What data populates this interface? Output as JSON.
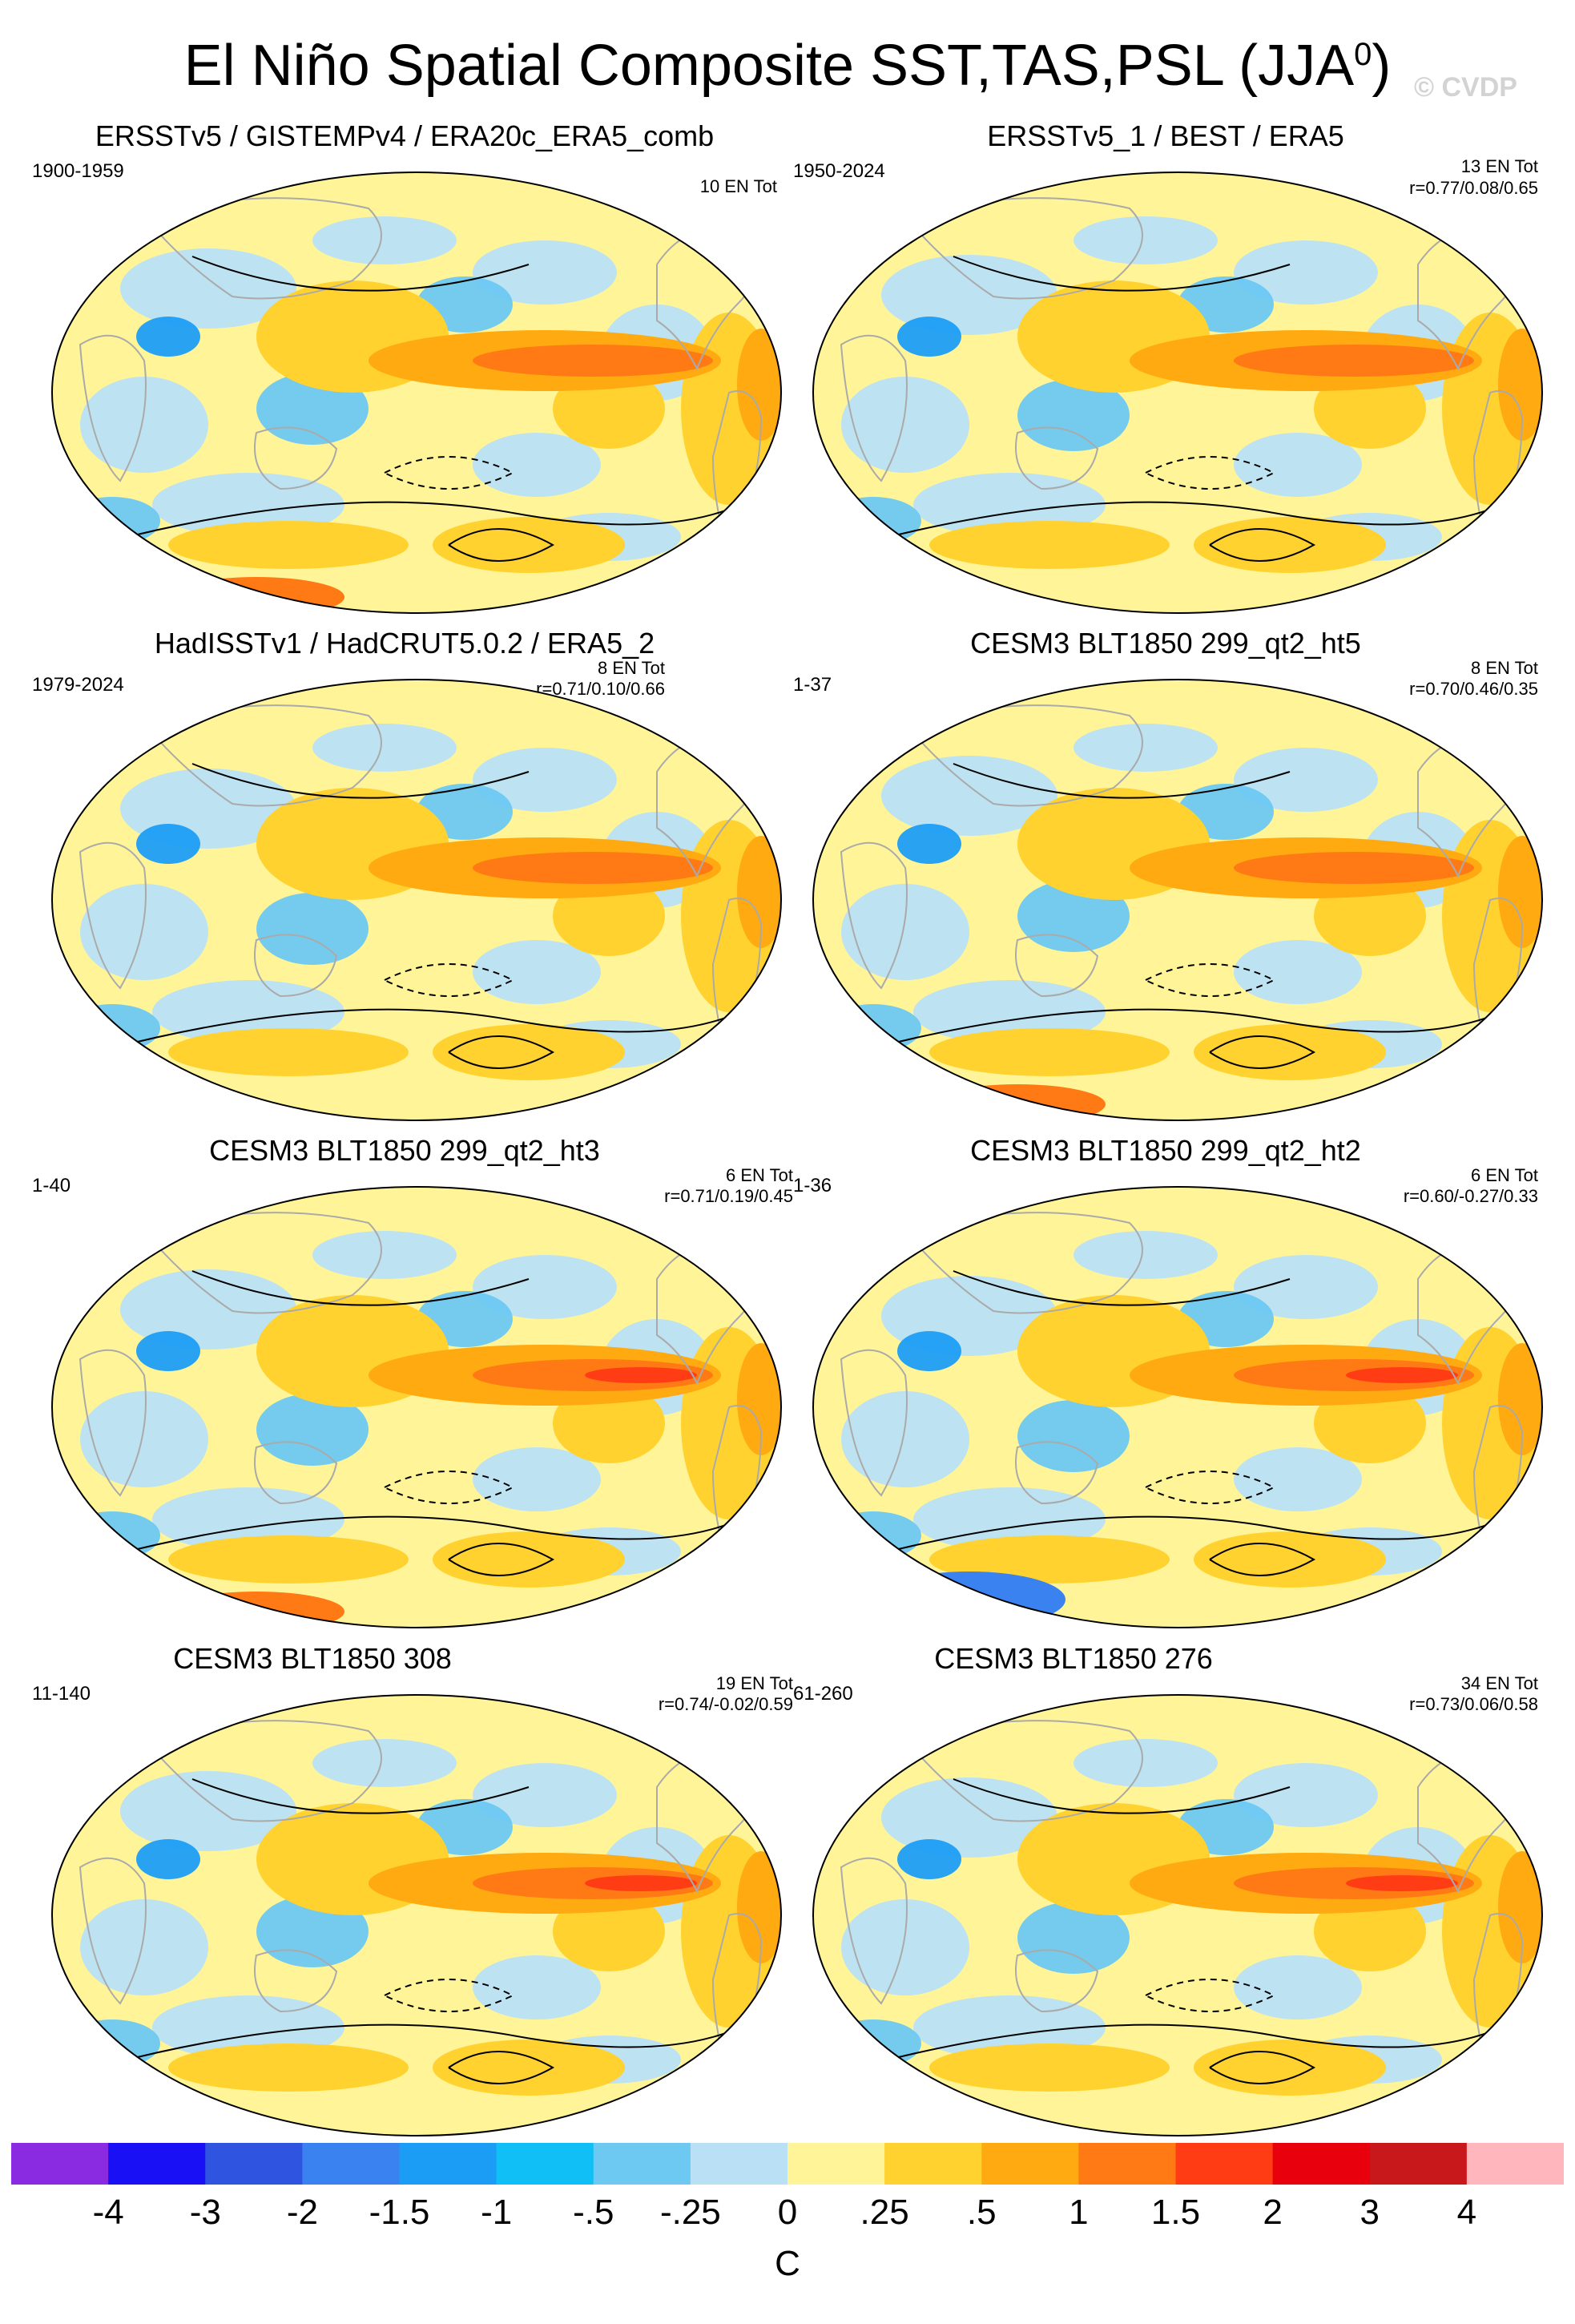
{
  "title": {
    "main": "El Niño Spatial Composite SST,TAS,PSL (JJA",
    "sup": "0",
    "close": ")"
  },
  "watermark": "© CVDP",
  "colors": {
    "land_outline": "#aaaaaa",
    "contour": "#000000"
  },
  "panels": [
    {
      "title": "ERSSTv5 / GISTEMPv4 / ERA20c_ERA5_comb",
      "period": "1900-1959",
      "en_tot": "10 EN Tot",
      "r": ""
    },
    {
      "title": "ERSSTv5_1 / BEST / ERA5",
      "period": "1950-2024",
      "en_tot": "13 EN Tot",
      "r": "r=0.77/0.08/0.65"
    },
    {
      "title": "HadISSTv1 / HadCRUT5.0.2 / ERA5_2",
      "period": "1979-2024",
      "en_tot": "8 EN Tot",
      "r": "r=0.71/0.10/0.66"
    },
    {
      "title": "CESM3 BLT1850 299_qt2_ht5",
      "period": "1-37",
      "en_tot": "8 EN Tot",
      "r": "r=0.70/0.46/0.35"
    },
    {
      "title": "CESM3 BLT1850 299_qt2_ht3",
      "period": "1-40",
      "en_tot": "6 EN Tot",
      "r": "r=0.71/0.19/0.45"
    },
    {
      "title": "CESM3 BLT1850 299_qt2_ht2",
      "period": "1-36",
      "en_tot": "6 EN Tot",
      "r": "r=0.60/-0.27/0.33"
    },
    {
      "title": "CESM3 BLT1850 308",
      "period": "11-140",
      "en_tot": "19 EN Tot",
      "r": "r=0.74/-0.02/0.59"
    },
    {
      "title": "CESM3 BLT1850 276",
      "period": "61-260",
      "en_tot": "34 EN Tot",
      "r": "r=0.73/0.06/0.58"
    }
  ],
  "chart_data": {
    "type": "heatmap",
    "title": "El Niño Spatial Composite SST,TAS,PSL (JJA0)",
    "projection": "Robinson global maps, Pacific-centered",
    "colorbar": {
      "unit": "C",
      "tick_labels": [
        "-4",
        "-3",
        "-2",
        "-1.5",
        "-1",
        "-.5",
        "-.25",
        "0",
        ".25",
        ".5",
        "1",
        "1.5",
        "2",
        "3",
        "4"
      ],
      "bin_colors": [
        "#8a2be2",
        "#1a10f5",
        "#2f55e0",
        "#3a82ef",
        "#1c9df5",
        "#0fbff5",
        "#6dc8f2",
        "#b9e0f5",
        "#fff598",
        "#ffd230",
        "#ffaa10",
        "#ff7a14",
        "#ff3c14",
        "#e8000c",
        "#c8181c",
        "#ffb6bc"
      ]
    }
  }
}
